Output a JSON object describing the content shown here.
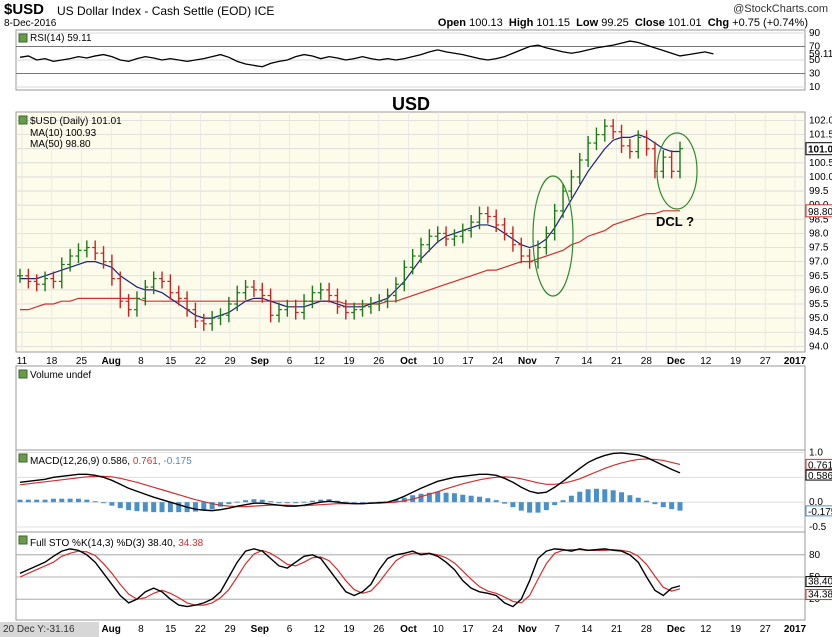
{
  "header": {
    "symbol": "$USD",
    "description": "US Dollar Index - Cash Settle (EOD) ICE",
    "date": "8-Dec-2016",
    "brand": "@StockCharts.com",
    "open_label": "Open",
    "open": "100.13",
    "high_label": "High",
    "high": "101.15",
    "low_label": "Low",
    "low": "99.25",
    "close_label": "Close",
    "close": "101.01",
    "chg_label": "Chg",
    "chg": "+0.75 (+0.74%)"
  },
  "footer": {
    "text": "20 Dec Y:-31.16"
  },
  "colors": {
    "up": "#1a7a1a",
    "down": "#cc2222",
    "ma10": "#1a237e",
    "ma50": "#d32f2f",
    "bg": "#fdfbea",
    "grid": "#d8d8d8",
    "macdHist": "#4a90c8",
    "ellipse": "#2e8b2e",
    "annot": "#3b2fbf",
    "usdText": "#2e8b2e"
  },
  "chart_data": [
    {
      "type": "line",
      "title": "RSI(14) 59.11",
      "yticks": [
        10,
        30,
        50,
        70,
        90
      ],
      "right_labels": [
        "90",
        "70",
        "59.11",
        "50",
        "30",
        "10"
      ],
      "ylim": [
        10,
        90
      ],
      "values": [
        54,
        56,
        50,
        52,
        48,
        50,
        52,
        55,
        53,
        56,
        58,
        55,
        50,
        48,
        52,
        55,
        53,
        50,
        52,
        50,
        48,
        50,
        52,
        55,
        58,
        54,
        48,
        44,
        42,
        40,
        45,
        48,
        50,
        55,
        58,
        56,
        52,
        55,
        53,
        50,
        52,
        55,
        52,
        50,
        52,
        50,
        52,
        55,
        58,
        62,
        65,
        62,
        60,
        58,
        55,
        52,
        50,
        52,
        55,
        60,
        65,
        70,
        72,
        68,
        65,
        62,
        60,
        62,
        65,
        68,
        70,
        72,
        75,
        78,
        76,
        72,
        68,
        64,
        60,
        56,
        58,
        60,
        62,
        59
      ]
    },
    {
      "type": "bar",
      "title": "$USD (Daily) 101.01",
      "annotation_title": "USD",
      "annotation_dcl": "DCL ?",
      "legend": [
        {
          "name": "MA(10) 100.93"
        },
        {
          "name": "MA(50) 98.80"
        }
      ],
      "ylim": [
        93.8,
        102.3
      ],
      "yticks": [
        "102.0",
        "101.5",
        "101.0",
        "100.5",
        "100.0",
        "99.5",
        "99.0",
        "98.5",
        "98.0",
        "97.5",
        "97.0",
        "96.5",
        "96.0",
        "95.5",
        "95.0",
        "94.5",
        "94.0"
      ],
      "right_tags": [
        "101.0",
        "98.80"
      ],
      "x_labels": [
        "11",
        "18",
        "25",
        "Aug",
        "8",
        "15",
        "22",
        "29",
        "Sep",
        "6",
        "12",
        "19",
        "26",
        "Oct",
        "10",
        "17",
        "24",
        "Nov",
        "7",
        "14",
        "21",
        "28",
        "Dec",
        "12",
        "19",
        "27",
        "2017"
      ],
      "closes": [
        96.5,
        96.3,
        96.2,
        96.4,
        96.3,
        96.9,
        97.2,
        97.4,
        97.5,
        97.3,
        97.0,
        96.4,
        95.6,
        95.3,
        95.7,
        96.1,
        96.4,
        96.3,
        95.9,
        95.7,
        95.3,
        94.9,
        94.8,
        95.0,
        95.1,
        95.5,
        95.9,
        96.1,
        96.0,
        95.8,
        95.1,
        95.3,
        95.4,
        95.2,
        95.6,
        95.9,
        96.0,
        95.8,
        95.4,
        95.2,
        95.3,
        95.4,
        95.5,
        95.6,
        95.8,
        96.2,
        96.8,
        97.2,
        97.6,
        97.9,
        98.0,
        97.8,
        97.9,
        98.1,
        98.4,
        98.7,
        98.6,
        98.3,
        98.0,
        97.6,
        97.2,
        97.0,
        97.5,
        98.0,
        98.8,
        99.5,
        100.0,
        100.6,
        101.2,
        101.5,
        101.8,
        101.6,
        101.1,
        100.9,
        101.4,
        101.0,
        100.2,
        100.7,
        100.2,
        101.0
      ],
      "ma10": [
        96.4,
        96.4,
        96.4,
        96.5,
        96.6,
        96.7,
        96.8,
        96.9,
        97.0,
        97.0,
        96.9,
        96.8,
        96.5,
        96.3,
        96.1,
        96.0,
        96.0,
        95.9,
        95.7,
        95.5,
        95.3,
        95.1,
        95.0,
        95.0,
        95.1,
        95.2,
        95.4,
        95.6,
        95.7,
        95.7,
        95.6,
        95.5,
        95.4,
        95.4,
        95.4,
        95.5,
        95.6,
        95.6,
        95.5,
        95.4,
        95.4,
        95.4,
        95.5,
        95.6,
        95.7,
        96.0,
        96.3,
        96.7,
        97.1,
        97.4,
        97.7,
        97.9,
        98.0,
        98.1,
        98.2,
        98.3,
        98.3,
        98.2,
        98.0,
        97.8,
        97.6,
        97.5,
        97.6,
        97.8,
        98.2,
        98.7,
        99.2,
        99.7,
        100.2,
        100.6,
        101.0,
        101.3,
        101.4,
        101.4,
        101.5,
        101.4,
        101.2,
        101.0,
        100.9,
        100.9
      ],
      "ma50": [
        95.3,
        95.3,
        95.4,
        95.5,
        95.5,
        95.6,
        95.6,
        95.7,
        95.7,
        95.7,
        95.7,
        95.7,
        95.7,
        95.7,
        95.7,
        95.6,
        95.6,
        95.6,
        95.6,
        95.6,
        95.6,
        95.6,
        95.6,
        95.6,
        95.6,
        95.6,
        95.6,
        95.6,
        95.6,
        95.6,
        95.6,
        95.6,
        95.6,
        95.6,
        95.6,
        95.6,
        95.6,
        95.6,
        95.6,
        95.5,
        95.5,
        95.5,
        95.5,
        95.5,
        95.6,
        95.6,
        95.7,
        95.8,
        95.9,
        96.0,
        96.1,
        96.2,
        96.3,
        96.4,
        96.5,
        96.6,
        96.7,
        96.7,
        96.8,
        96.9,
        97.0,
        97.0,
        97.1,
        97.2,
        97.3,
        97.4,
        97.6,
        97.7,
        97.9,
        98.0,
        98.1,
        98.3,
        98.4,
        98.5,
        98.6,
        98.7,
        98.7,
        98.8,
        98.8,
        98.8
      ]
    },
    {
      "type": "bar",
      "title": "Volume undef"
    },
    {
      "type": "line",
      "title": "MACD(12,26,9) 0.586, 0.761, -0.175",
      "title_parts": [
        "MACD(12,26,9) 0.586,",
        "0.761,",
        "-0.175"
      ],
      "yticks": [
        "1.0",
        "0.5",
        "0.0",
        "-0.5"
      ],
      "right_tags": [
        "0.761",
        "0.586",
        "-0.175"
      ],
      "ylim": [
        -0.6,
        1.05
      ],
      "macd": [
        0.4,
        0.42,
        0.44,
        0.46,
        0.5,
        0.52,
        0.54,
        0.56,
        0.56,
        0.54,
        0.5,
        0.44,
        0.36,
        0.28,
        0.22,
        0.16,
        0.1,
        0.05,
        0.0,
        -0.05,
        -0.1,
        -0.14,
        -0.16,
        -0.17,
        -0.15,
        -0.12,
        -0.08,
        -0.05,
        -0.02,
        -0.02,
        -0.04,
        -0.06,
        -0.08,
        -0.08,
        -0.06,
        -0.03,
        0.0,
        0.02,
        0.0,
        -0.02,
        -0.03,
        -0.03,
        -0.02,
        -0.01,
        0.0,
        0.05,
        0.12,
        0.2,
        0.28,
        0.35,
        0.42,
        0.46,
        0.5,
        0.52,
        0.54,
        0.56,
        0.56,
        0.54,
        0.48,
        0.4,
        0.3,
        0.22,
        0.18,
        0.2,
        0.3,
        0.42,
        0.55,
        0.68,
        0.8,
        0.88,
        0.94,
        0.98,
        0.99,
        0.97,
        0.95,
        0.9,
        0.82,
        0.74,
        0.66,
        0.59
      ],
      "signal": [
        0.35,
        0.37,
        0.39,
        0.41,
        0.43,
        0.45,
        0.47,
        0.49,
        0.51,
        0.52,
        0.52,
        0.51,
        0.48,
        0.44,
        0.4,
        0.35,
        0.3,
        0.25,
        0.2,
        0.15,
        0.1,
        0.05,
        0.01,
        -0.03,
        -0.06,
        -0.08,
        -0.09,
        -0.09,
        -0.08,
        -0.07,
        -0.06,
        -0.06,
        -0.06,
        -0.07,
        -0.07,
        -0.06,
        -0.05,
        -0.04,
        -0.03,
        -0.03,
        -0.03,
        -0.03,
        -0.02,
        -0.02,
        -0.01,
        0.0,
        0.03,
        0.06,
        0.11,
        0.16,
        0.21,
        0.27,
        0.32,
        0.37,
        0.41,
        0.45,
        0.48,
        0.5,
        0.51,
        0.5,
        0.47,
        0.43,
        0.39,
        0.36,
        0.36,
        0.38,
        0.42,
        0.47,
        0.54,
        0.61,
        0.68,
        0.74,
        0.79,
        0.83,
        0.86,
        0.87,
        0.86,
        0.84,
        0.8,
        0.76
      ]
    },
    {
      "type": "line",
      "title": "Full STO %K(14,3) %D(3) 38.40, 34.38",
      "title_parts": [
        "Full STO %K(14,3) %D(3) 38.40,",
        "34.38"
      ],
      "yticks": [
        "80",
        "50",
        "20"
      ],
      "right_tags": [
        "38.40",
        "34.38"
      ],
      "ylim": [
        0,
        100
      ],
      "k": [
        55,
        60,
        65,
        70,
        78,
        85,
        88,
        86,
        80,
        70,
        55,
        40,
        25,
        15,
        20,
        30,
        35,
        30,
        20,
        12,
        10,
        12,
        15,
        20,
        30,
        50,
        70,
        85,
        88,
        85,
        75,
        65,
        62,
        70,
        78,
        80,
        75,
        60,
        45,
        30,
        25,
        30,
        40,
        60,
        75,
        80,
        82,
        85,
        80,
        82,
        78,
        70,
        60,
        45,
        35,
        30,
        28,
        25,
        15,
        10,
        20,
        45,
        75,
        85,
        88,
        87,
        85,
        88,
        86,
        87,
        88,
        86,
        85,
        80,
        70,
        50,
        32,
        25,
        35,
        38
      ],
      "d": [
        50,
        55,
        60,
        65,
        70,
        78,
        82,
        85,
        84,
        79,
        68,
        55,
        40,
        27,
        20,
        22,
        28,
        32,
        28,
        22,
        15,
        12,
        12,
        15,
        22,
        33,
        50,
        68,
        81,
        86,
        82,
        75,
        67,
        65,
        70,
        76,
        77,
        72,
        60,
        45,
        33,
        28,
        31,
        43,
        58,
        72,
        79,
        82,
        82,
        82,
        80,
        76,
        69,
        58,
        47,
        37,
        31,
        28,
        23,
        17,
        15,
        25,
        47,
        68,
        82,
        86,
        87,
        87,
        86,
        86,
        86,
        87,
        86,
        84,
        78,
        67,
        51,
        36,
        31,
        34
      ]
    }
  ]
}
